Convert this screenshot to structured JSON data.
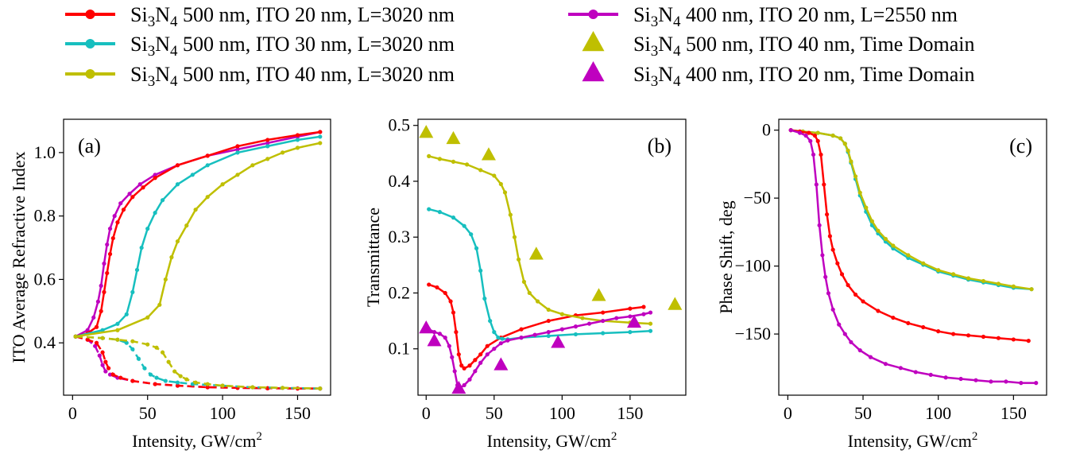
{
  "legend": {
    "items": [
      {
        "label_pre": "Si",
        "sub1": "3",
        "label_mid": "N",
        "sub2": "4",
        "label_post": " 500 nm, ITO 20 nm, L=3020 nm",
        "color": "#ff0000",
        "kind": "line"
      },
      {
        "label_pre": "Si",
        "sub1": "3",
        "label_mid": "N",
        "sub2": "4",
        "label_post": " 500 nm, ITO 30 nm, L=3020 nm",
        "color": "#17bfbf",
        "kind": "line"
      },
      {
        "label_pre": "Si",
        "sub1": "3",
        "label_mid": "N",
        "sub2": "4",
        "label_post": " 500 nm, ITO 40 nm, L=3020 nm",
        "color": "#bfbf00",
        "kind": "line"
      },
      {
        "label_pre": "Si",
        "sub1": "3",
        "label_mid": "N",
        "sub2": "4",
        "label_post": " 400 nm, ITO 20 nm, L=2550 nm",
        "color": "#bf00bf",
        "kind": "line"
      },
      {
        "label_pre": "Si",
        "sub1": "3",
        "label_mid": "N",
        "sub2": "4",
        "label_post": " 500 nm, ITO 40 nm, Time Domain",
        "color": "#bfbf00",
        "kind": "triangle"
      },
      {
        "label_pre": "Si",
        "sub1": "3",
        "label_mid": "N",
        "sub2": "4",
        "label_post": " 400 nm, ITO 20 nm, Time Domain",
        "color": "#bf00bf",
        "kind": "triangle"
      }
    ]
  },
  "colors": {
    "red": "#ff0000",
    "cyan": "#17bfbf",
    "olive": "#bfbf00",
    "magenta": "#bf00bf"
  },
  "chart_data": [
    {
      "type": "line",
      "panel_label": "(a)",
      "ylabel": "ITO Average Refractive Index",
      "xlabel": "Intensity, GW/cm",
      "xlabel_sup": "2",
      "xlim": [
        -6,
        172
      ],
      "ylim": [
        0.235,
        1.105
      ],
      "xticks": [
        0,
        50,
        100,
        150
      ],
      "yticks": [
        0.4,
        0.6,
        0.8,
        1.0
      ],
      "ytick_labels": [
        "0.4",
        "0.6",
        "0.8",
        "1.0"
      ],
      "series": [
        {
          "color": "#bf00bf",
          "style": "solid",
          "x": [
            2,
            10,
            14,
            17,
            19,
            21,
            23,
            25,
            28,
            32,
            38,
            45,
            55,
            70,
            90,
            110,
            130,
            150,
            165
          ],
          "y": [
            0.42,
            0.44,
            0.48,
            0.53,
            0.58,
            0.65,
            0.71,
            0.76,
            0.8,
            0.84,
            0.87,
            0.9,
            0.93,
            0.96,
            0.99,
            1.01,
            1.03,
            1.05,
            1.065
          ]
        },
        {
          "color": "#ff0000",
          "style": "solid",
          "x": [
            2,
            10,
            16,
            19,
            21,
            23,
            25,
            27,
            30,
            34,
            40,
            47,
            55,
            70,
            90,
            110,
            130,
            150,
            165
          ],
          "y": [
            0.42,
            0.43,
            0.45,
            0.5,
            0.56,
            0.62,
            0.68,
            0.73,
            0.78,
            0.82,
            0.86,
            0.89,
            0.92,
            0.96,
            0.99,
            1.02,
            1.04,
            1.055,
            1.065
          ]
        },
        {
          "color": "#17bfbf",
          "style": "solid",
          "x": [
            2,
            20,
            30,
            36,
            40,
            43,
            46,
            50,
            55,
            60,
            70,
            80,
            90,
            110,
            130,
            150,
            165
          ],
          "y": [
            0.42,
            0.44,
            0.46,
            0.49,
            0.56,
            0.63,
            0.7,
            0.76,
            0.81,
            0.85,
            0.9,
            0.93,
            0.96,
            1.0,
            1.02,
            1.04,
            1.05
          ]
        },
        {
          "color": "#bfbf00",
          "style": "solid",
          "x": [
            2,
            30,
            50,
            58,
            62,
            66,
            70,
            76,
            82,
            90,
            100,
            110,
            120,
            130,
            140,
            150,
            165
          ],
          "y": [
            0.42,
            0.44,
            0.48,
            0.52,
            0.6,
            0.67,
            0.72,
            0.77,
            0.82,
            0.86,
            0.9,
            0.93,
            0.96,
            0.98,
            1.0,
            1.015,
            1.03
          ]
        },
        {
          "color": "#bf00bf",
          "style": "dashed",
          "x": [
            2,
            10,
            15,
            18,
            20,
            22,
            25,
            30,
            40,
            55,
            70,
            90,
            110,
            130,
            150,
            165
          ],
          "y": [
            0.42,
            0.41,
            0.39,
            0.36,
            0.33,
            0.31,
            0.3,
            0.29,
            0.28,
            0.27,
            0.265,
            0.26,
            0.258,
            0.257,
            0.256,
            0.256
          ]
        },
        {
          "color": "#ff0000",
          "style": "dashed",
          "x": [
            2,
            10,
            16,
            20,
            22,
            24,
            27,
            32,
            40,
            55,
            70,
            90,
            110,
            130,
            150,
            165
          ],
          "y": [
            0.42,
            0.41,
            0.4,
            0.37,
            0.34,
            0.32,
            0.3,
            0.29,
            0.28,
            0.27,
            0.265,
            0.26,
            0.258,
            0.257,
            0.256,
            0.256
          ]
        },
        {
          "color": "#17bfbf",
          "style": "dashed",
          "x": [
            2,
            20,
            30,
            36,
            40,
            44,
            48,
            52,
            56,
            62,
            70,
            80,
            100,
            120,
            140,
            165
          ],
          "y": [
            0.42,
            0.415,
            0.41,
            0.4,
            0.38,
            0.35,
            0.32,
            0.3,
            0.29,
            0.28,
            0.275,
            0.27,
            0.265,
            0.26,
            0.258,
            0.256
          ]
        },
        {
          "color": "#bfbf00",
          "style": "dashed",
          "x": [
            2,
            20,
            30,
            40,
            50,
            56,
            60,
            64,
            68,
            72,
            76,
            82,
            90,
            100,
            120,
            140,
            165
          ],
          "y": [
            0.42,
            0.415,
            0.41,
            0.405,
            0.395,
            0.385,
            0.37,
            0.34,
            0.31,
            0.295,
            0.285,
            0.275,
            0.27,
            0.265,
            0.26,
            0.258,
            0.256
          ]
        }
      ]
    },
    {
      "type": "line",
      "panel_label": "(b)",
      "ylabel": "Transmittance",
      "xlabel": "Intensity, GW/cm",
      "xlabel_sup": "2",
      "xlim": [
        -6,
        191
      ],
      "ylim": [
        0.017,
        0.511
      ],
      "xticks": [
        0,
        50,
        100,
        150
      ],
      "yticks": [
        0.1,
        0.2,
        0.3,
        0.4,
        0.5
      ],
      "ytick_labels": [
        "0.1",
        "0.2",
        "0.3",
        "0.4",
        "0.5"
      ],
      "series": [
        {
          "color": "#ff0000",
          "style": "solid",
          "x": [
            2,
            8,
            14,
            18,
            20,
            22,
            24,
            26,
            28,
            32,
            36,
            40,
            45,
            55,
            70,
            90,
            110,
            130,
            150,
            160
          ],
          "y": [
            0.215,
            0.21,
            0.2,
            0.185,
            0.165,
            0.13,
            0.09,
            0.07,
            0.065,
            0.07,
            0.08,
            0.09,
            0.105,
            0.12,
            0.135,
            0.15,
            0.16,
            0.165,
            0.172,
            0.175
          ]
        },
        {
          "color": "#17bfbf",
          "style": "solid",
          "x": [
            2,
            10,
            20,
            28,
            33,
            37,
            40,
            43,
            47,
            50,
            53,
            56,
            60,
            70,
            90,
            110,
            130,
            150,
            165
          ],
          "y": [
            0.35,
            0.345,
            0.335,
            0.32,
            0.305,
            0.28,
            0.24,
            0.19,
            0.15,
            0.13,
            0.12,
            0.118,
            0.117,
            0.12,
            0.123,
            0.126,
            0.128,
            0.13,
            0.132
          ]
        },
        {
          "color": "#bfbf00",
          "style": "solid",
          "x": [
            2,
            10,
            20,
            30,
            40,
            50,
            55,
            58,
            62,
            65,
            68,
            72,
            76,
            82,
            90,
            100,
            115,
            130,
            150,
            165
          ],
          "y": [
            0.445,
            0.44,
            0.435,
            0.43,
            0.42,
            0.41,
            0.395,
            0.38,
            0.34,
            0.3,
            0.26,
            0.22,
            0.2,
            0.185,
            0.17,
            0.162,
            0.155,
            0.15,
            0.147,
            0.145
          ]
        },
        {
          "color": "#bf00bf",
          "style": "solid",
          "x": [
            2,
            6,
            10,
            14,
            17,
            19,
            21,
            23,
            25,
            28,
            32,
            36,
            40,
            45,
            50,
            55,
            60,
            70,
            80,
            90,
            100,
            110,
            120,
            130,
            140,
            150,
            160,
            165
          ],
          "y": [
            0.135,
            0.13,
            0.127,
            0.12,
            0.105,
            0.085,
            0.06,
            0.035,
            0.03,
            0.035,
            0.045,
            0.06,
            0.075,
            0.09,
            0.1,
            0.11,
            0.115,
            0.12,
            0.125,
            0.13,
            0.135,
            0.14,
            0.145,
            0.15,
            0.155,
            0.158,
            0.162,
            0.165
          ]
        }
      ],
      "markers": [
        {
          "color": "#bfbf00",
          "x": [
            0,
            20,
            46,
            81,
            127,
            183
          ],
          "y": [
            0.488,
            0.477,
            0.448,
            0.27,
            0.196,
            0.18
          ]
        },
        {
          "color": "#bf00bf",
          "x": [
            0,
            6,
            24,
            55,
            97,
            153
          ],
          "y": [
            0.138,
            0.115,
            0.03,
            0.072,
            0.112,
            0.148
          ]
        }
      ]
    },
    {
      "type": "line",
      "panel_label": "(c)",
      "ylabel": "Phase Shift, deg",
      "xlabel": "Intensity, GW/cm",
      "xlabel_sup": "2",
      "xlim": [
        -6,
        172
      ],
      "ylim": [
        -195,
        8
      ],
      "xticks": [
        0,
        50,
        100,
        150
      ],
      "yticks": [
        0,
        -50,
        -100,
        -150
      ],
      "ytick_labels": [
        "0",
        "−50",
        "−100",
        "−150"
      ],
      "series": [
        {
          "color": "#17bfbf",
          "style": "solid",
          "x": [
            2,
            10,
            20,
            30,
            35,
            38,
            40,
            42,
            45,
            48,
            52,
            56,
            60,
            65,
            70,
            80,
            90,
            100,
            110,
            120,
            130,
            140,
            150,
            162
          ],
          "y": [
            0,
            -1,
            -2,
            -4,
            -6,
            -10,
            -16,
            -24,
            -36,
            -48,
            -60,
            -70,
            -76,
            -82,
            -87,
            -94,
            -99,
            -104,
            -107,
            -110,
            -112,
            -114,
            -116,
            -117
          ]
        },
        {
          "color": "#bfbf00",
          "style": "solid",
          "x": [
            2,
            10,
            20,
            30,
            35,
            38,
            40,
            42,
            45,
            48,
            52,
            56,
            60,
            65,
            70,
            80,
            90,
            100,
            110,
            120,
            130,
            140,
            150,
            162
          ],
          "y": [
            0,
            -1,
            -2,
            -4,
            -6,
            -10,
            -15,
            -23,
            -34,
            -46,
            -57,
            -67,
            -74,
            -80,
            -85,
            -92,
            -98,
            -103,
            -106,
            -109,
            -111,
            -113,
            -115,
            -117
          ]
        },
        {
          "color": "#ff0000",
          "style": "solid",
          "x": [
            2,
            8,
            14,
            18,
            20,
            22,
            24,
            26,
            28,
            30,
            33,
            36,
            40,
            45,
            50,
            60,
            70,
            80,
            90,
            100,
            110,
            120,
            130,
            140,
            150,
            160
          ],
          "y": [
            0,
            -1,
            -2,
            -4,
            -8,
            -18,
            -40,
            -62,
            -78,
            -88,
            -98,
            -106,
            -114,
            -121,
            -126,
            -133,
            -138,
            -142,
            -145,
            -148,
            -150,
            -151,
            -152,
            -153,
            -154,
            -155
          ]
        },
        {
          "color": "#bf00bf",
          "style": "solid",
          "x": [
            2,
            8,
            12,
            15,
            17,
            19,
            21,
            23,
            25,
            27,
            30,
            34,
            38,
            42,
            48,
            55,
            65,
            75,
            85,
            95,
            105,
            115,
            125,
            135,
            145,
            155,
            165
          ],
          "y": [
            0,
            -2,
            -4,
            -8,
            -18,
            -40,
            -70,
            -92,
            -108,
            -120,
            -132,
            -143,
            -150,
            -156,
            -162,
            -167,
            -172,
            -175,
            -178,
            -180,
            -182,
            -183,
            -184,
            -185,
            -185,
            -186,
            -186
          ]
        }
      ]
    }
  ]
}
